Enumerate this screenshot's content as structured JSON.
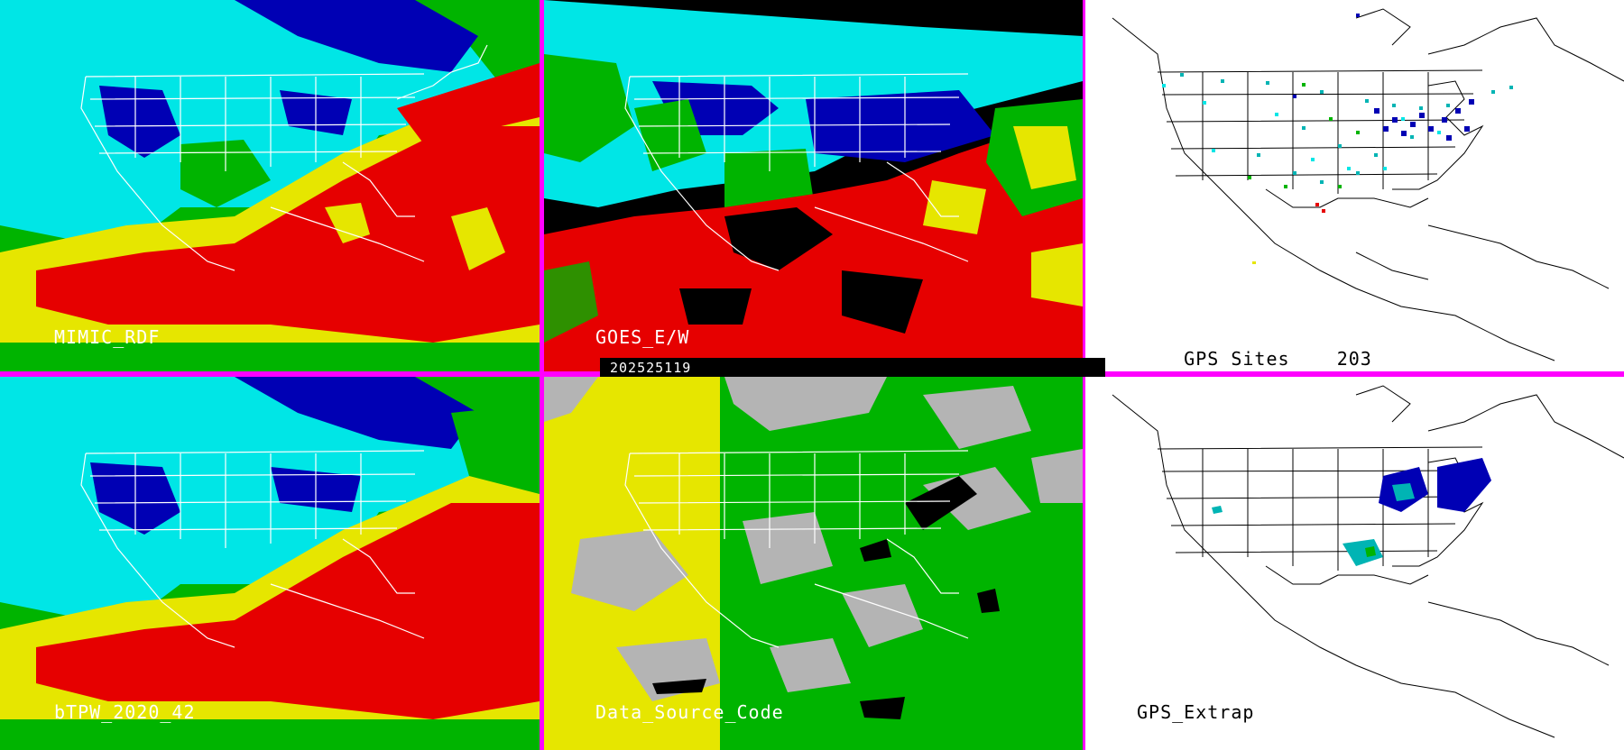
{
  "panels": {
    "p1": {
      "label": "MIMIC_RDF"
    },
    "p2": {
      "label": "GOES_E/W"
    },
    "p3": {
      "label": "GPS Sites",
      "count": "203"
    },
    "p4": {
      "label": "bTPW_2020_42"
    },
    "p5": {
      "label": "Data_Source_Code"
    },
    "p6": {
      "label": "GPS_Extrap"
    }
  },
  "timestamp": "202525119",
  "colors": {
    "border": "#ff00ff",
    "red": "#e60000",
    "yellow": "#e6e600",
    "green": "#00b400",
    "cyan": "#00e6e6",
    "blue": "#0000b4",
    "gray": "#b4b4b4"
  }
}
